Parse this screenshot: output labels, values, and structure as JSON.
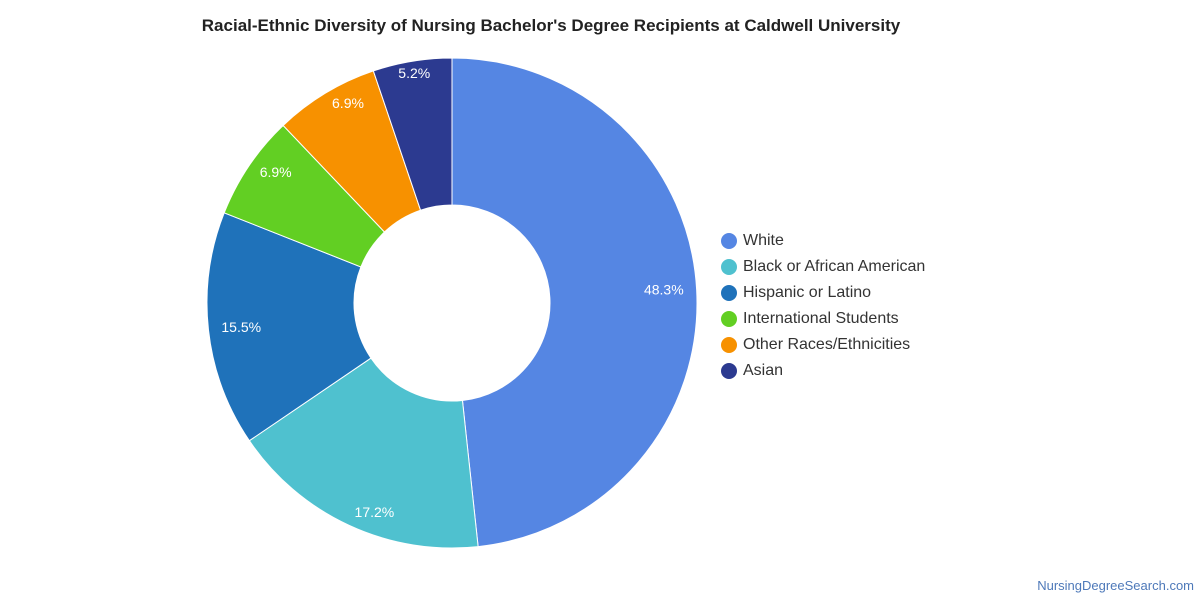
{
  "chart_data": {
    "type": "pie",
    "title": "Racial-Ethnic Diversity of Nursing Bachelor's Degree Recipients at Caldwell University",
    "categories": [
      "White",
      "Black or African American",
      "Hispanic or Latino",
      "International Students",
      "Other Races/Ethnicities",
      "Asian"
    ],
    "values": [
      48.3,
      17.2,
      15.5,
      6.9,
      6.9,
      5.2
    ],
    "labels": [
      "48.3%",
      "17.2%",
      "15.5%",
      "6.9%",
      "6.9%",
      "5.2%"
    ],
    "colors": [
      "#5586e3",
      "#4fc1cf",
      "#1f72ba",
      "#62cf23",
      "#f79100",
      "#2c3a90"
    ],
    "legend_position": "right",
    "donut": true
  },
  "credit": "NursingDegreeSearch.com"
}
